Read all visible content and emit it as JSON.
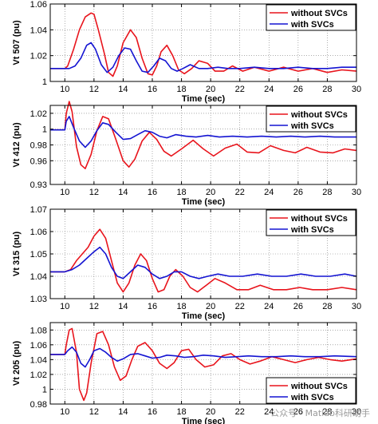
{
  "colors": {
    "without": "#e8141c",
    "with": "#1414d2",
    "axis": "#000000",
    "grid": "#7a7a7a"
  },
  "watermark": "公众号 · Matlab科研助手",
  "chart_data": [
    {
      "type": "line",
      "xlabel": "Time (sec)",
      "ylabel": "Vt 507 (pu)",
      "xlim": [
        9,
        30
      ],
      "ylim": [
        1.0,
        1.06
      ],
      "xticks": [
        10,
        12,
        14,
        16,
        18,
        20,
        22,
        24,
        26,
        28,
        30
      ],
      "yticks": [
        1.0,
        1.02,
        1.04,
        1.06
      ],
      "ytick_labels": [
        "1",
        "1.02",
        "1.04",
        "1.06"
      ],
      "grid": true,
      "legend": "top-right",
      "series": [
        {
          "name": "without SVCs",
          "color": "red",
          "x": [
            9,
            10,
            10.2,
            10.6,
            11.0,
            11.4,
            11.8,
            12.0,
            12.3,
            12.7,
            13.0,
            13.3,
            13.6,
            14.0,
            14.5,
            14.9,
            15.3,
            15.7,
            16.0,
            16.3,
            16.6,
            17.0,
            17.4,
            17.8,
            18.2,
            18.7,
            19.2,
            19.8,
            20.3,
            20.9,
            21.5,
            22.2,
            23.0,
            24.0,
            25.0,
            26.0,
            27.0,
            28.0,
            29.0,
            30
          ],
          "y": [
            1.01,
            1.01,
            1.012,
            1.025,
            1.04,
            1.05,
            1.053,
            1.052,
            1.04,
            1.022,
            1.007,
            1.004,
            1.012,
            1.03,
            1.04,
            1.034,
            1.018,
            1.006,
            1.005,
            1.012,
            1.023,
            1.028,
            1.02,
            1.009,
            1.006,
            1.01,
            1.016,
            1.014,
            1.008,
            1.008,
            1.012,
            1.008,
            1.011,
            1.008,
            1.011,
            1.008,
            1.01,
            1.007,
            1.009,
            1.008
          ]
        },
        {
          "name": "with SVCs",
          "color": "blue",
          "x": [
            9,
            10,
            10.3,
            10.7,
            11.1,
            11.5,
            11.8,
            12.1,
            12.5,
            12.9,
            13.3,
            13.7,
            14.1,
            14.5,
            14.9,
            15.3,
            15.7,
            16.1,
            16.5,
            16.9,
            17.3,
            17.7,
            18.1,
            18.6,
            19.2,
            19.8,
            20.5,
            21.2,
            22.0,
            23.0,
            24.0,
            25.0,
            26.0,
            27.0,
            28.0,
            29.0,
            30
          ],
          "y": [
            1.01,
            1.01,
            1.01,
            1.012,
            1.018,
            1.028,
            1.03,
            1.025,
            1.013,
            1.007,
            1.011,
            1.02,
            1.026,
            1.025,
            1.016,
            1.008,
            1.007,
            1.012,
            1.018,
            1.016,
            1.01,
            1.008,
            1.01,
            1.013,
            1.01,
            1.01,
            1.011,
            1.01,
            1.01,
            1.011,
            1.01,
            1.01,
            1.011,
            1.01,
            1.01,
            1.011,
            1.011
          ]
        }
      ]
    },
    {
      "type": "line",
      "xlabel": "Time (sec)",
      "ylabel": "Vt 412 (pu)",
      "xlim": [
        9,
        30
      ],
      "ylim": [
        0.93,
        1.03
      ],
      "xticks": [
        10,
        12,
        14,
        16,
        18,
        20,
        22,
        24,
        26,
        28,
        30
      ],
      "yticks": [
        0.93,
        0.96,
        0.98,
        1.0,
        1.02
      ],
      "ytick_labels": [
        "0.93",
        "0.96",
        "0.98",
        "1",
        "1.02"
      ],
      "grid": true,
      "legend": "top-right",
      "series": [
        {
          "name": "without SVCs",
          "color": "red",
          "x": [
            9,
            10,
            10.1,
            10.3,
            10.5,
            10.8,
            11.1,
            11.4,
            11.8,
            12.2,
            12.6,
            13.0,
            13.5,
            14.0,
            14.4,
            14.8,
            15.3,
            15.8,
            16.3,
            16.8,
            17.3,
            18.0,
            18.8,
            19.5,
            20.2,
            21.0,
            21.8,
            22.5,
            23.3,
            24.1,
            25.0,
            25.8,
            26.6,
            27.5,
            28.4,
            29.2,
            30
          ],
          "y": [
            0.999,
            0.999,
            1.02,
            1.035,
            1.022,
            0.978,
            0.955,
            0.95,
            0.968,
            0.998,
            1.016,
            1.013,
            0.987,
            0.96,
            0.952,
            0.962,
            0.985,
            0.996,
            0.987,
            0.972,
            0.966,
            0.975,
            0.986,
            0.975,
            0.966,
            0.976,
            0.981,
            0.971,
            0.97,
            0.979,
            0.973,
            0.97,
            0.977,
            0.971,
            0.97,
            0.975,
            0.973
          ]
        },
        {
          "name": "with SVCs",
          "color": "blue",
          "x": [
            9,
            10,
            10.1,
            10.3,
            10.6,
            11.0,
            11.4,
            11.8,
            12.2,
            12.6,
            13.0,
            13.5,
            14.0,
            14.5,
            15.0,
            15.5,
            16.0,
            16.5,
            17.0,
            17.6,
            18.3,
            19.0,
            19.8,
            20.6,
            21.5,
            22.5,
            23.5,
            24.5,
            25.5,
            26.5,
            27.5,
            28.5,
            30
          ],
          "y": [
            0.999,
            0.999,
            1.01,
            1.016,
            1.002,
            0.985,
            0.977,
            0.985,
            0.998,
            1.008,
            1.006,
            0.996,
            0.987,
            0.988,
            0.993,
            0.998,
            0.996,
            0.991,
            0.989,
            0.993,
            0.991,
            0.99,
            0.992,
            0.99,
            0.991,
            0.99,
            0.991,
            0.99,
            0.991,
            0.99,
            0.991,
            0.99,
            0.99
          ]
        }
      ]
    },
    {
      "type": "line",
      "xlabel": "Time (sec)",
      "ylabel": "Vt 315 (pu)",
      "xlim": [
        9,
        30
      ],
      "ylim": [
        1.03,
        1.07
      ],
      "xticks": [
        10,
        12,
        14,
        16,
        18,
        20,
        22,
        24,
        26,
        28,
        30
      ],
      "yticks": [
        1.03,
        1.04,
        1.05,
        1.06,
        1.07
      ],
      "ytick_labels": [
        "1.03",
        "1.04",
        "1.05",
        "1.06",
        "1.07"
      ],
      "grid": true,
      "legend": "top-right",
      "series": [
        {
          "name": "without SVCs",
          "color": "red",
          "x": [
            9,
            10,
            10.4,
            10.8,
            11.2,
            11.6,
            12.0,
            12.4,
            12.8,
            13.2,
            13.6,
            14.0,
            14.4,
            14.8,
            15.2,
            15.6,
            16.0,
            16.4,
            16.8,
            17.2,
            17.6,
            18.1,
            18.6,
            19.1,
            19.7,
            20.3,
            21.0,
            21.8,
            22.6,
            23.4,
            24.3,
            25.2,
            26.1,
            27.0,
            28.0,
            29.0,
            30
          ],
          "y": [
            1.042,
            1.042,
            1.043,
            1.047,
            1.05,
            1.053,
            1.058,
            1.061,
            1.057,
            1.047,
            1.037,
            1.033,
            1.037,
            1.045,
            1.05,
            1.047,
            1.039,
            1.033,
            1.034,
            1.04,
            1.043,
            1.04,
            1.035,
            1.033,
            1.036,
            1.039,
            1.037,
            1.034,
            1.034,
            1.036,
            1.034,
            1.034,
            1.035,
            1.034,
            1.034,
            1.035,
            1.034
          ]
        },
        {
          "name": "with SVCs",
          "color": "blue",
          "x": [
            9,
            10,
            10.5,
            11.0,
            11.5,
            12.0,
            12.4,
            12.8,
            13.2,
            13.6,
            14.0,
            14.5,
            15.0,
            15.5,
            16.0,
            16.5,
            17.0,
            17.5,
            18.0,
            18.6,
            19.2,
            19.8,
            20.5,
            21.3,
            22.2,
            23.2,
            24.2,
            25.2,
            26.2,
            27.2,
            28.2,
            29.2,
            30
          ],
          "y": [
            1.042,
            1.042,
            1.043,
            1.045,
            1.048,
            1.051,
            1.053,
            1.05,
            1.044,
            1.04,
            1.039,
            1.042,
            1.045,
            1.044,
            1.041,
            1.039,
            1.04,
            1.042,
            1.042,
            1.04,
            1.039,
            1.04,
            1.041,
            1.04,
            1.04,
            1.041,
            1.04,
            1.04,
            1.041,
            1.04,
            1.04,
            1.041,
            1.04
          ]
        }
      ]
    },
    {
      "type": "line",
      "xlabel": "Time (sec)",
      "ylabel": "Vt 205 (pu)",
      "xlim": [
        9,
        30
      ],
      "ylim": [
        0.98,
        1.09
      ],
      "xticks": [
        10,
        12,
        14,
        16,
        18,
        20,
        22,
        24,
        26,
        28,
        30
      ],
      "yticks": [
        0.98,
        1.0,
        1.02,
        1.04,
        1.06,
        1.08
      ],
      "ytick_labels": [
        "0.98",
        "1",
        "1.02",
        "1.04",
        "1.06",
        "1.08"
      ],
      "grid": true,
      "legend": "bottom-right",
      "series": [
        {
          "name": "without SVCs",
          "color": "red",
          "x": [
            9,
            10,
            10.1,
            10.3,
            10.5,
            10.8,
            11.0,
            11.3,
            11.5,
            11.8,
            12.2,
            12.6,
            13.0,
            13.4,
            13.8,
            14.2,
            14.6,
            15.0,
            15.5,
            16.0,
            16.5,
            17.0,
            17.5,
            18.0,
            18.5,
            19.0,
            19.6,
            20.2,
            20.8,
            21.4,
            22.0,
            22.7,
            23.4,
            24.2,
            25.0,
            25.8,
            26.6,
            27.4,
            28.2,
            29.0,
            30
          ],
          "y": [
            1.047,
            1.047,
            1.06,
            1.08,
            1.082,
            1.05,
            1.0,
            0.985,
            0.995,
            1.035,
            1.075,
            1.078,
            1.06,
            1.03,
            1.012,
            1.018,
            1.04,
            1.058,
            1.063,
            1.052,
            1.035,
            1.028,
            1.036,
            1.052,
            1.054,
            1.04,
            1.03,
            1.033,
            1.045,
            1.048,
            1.04,
            1.034,
            1.038,
            1.044,
            1.04,
            1.036,
            1.04,
            1.043,
            1.04,
            1.038,
            1.041
          ]
        },
        {
          "name": "with SVCs",
          "color": "blue",
          "x": [
            9,
            10,
            10.2,
            10.5,
            10.8,
            11.1,
            11.4,
            11.7,
            12.0,
            12.4,
            12.8,
            13.2,
            13.6,
            14.0,
            14.5,
            15.0,
            15.5,
            16.0,
            16.5,
            17.0,
            17.6,
            18.2,
            18.8,
            19.5,
            20.2,
            21.0,
            21.8,
            22.6,
            23.5,
            24.5,
            25.5,
            26.5,
            27.5,
            28.5,
            30
          ],
          "y": [
            1.047,
            1.047,
            1.052,
            1.057,
            1.05,
            1.035,
            1.03,
            1.04,
            1.052,
            1.055,
            1.05,
            1.043,
            1.038,
            1.041,
            1.047,
            1.048,
            1.045,
            1.042,
            1.043,
            1.046,
            1.045,
            1.043,
            1.044,
            1.046,
            1.045,
            1.043,
            1.044,
            1.045,
            1.044,
            1.044,
            1.045,
            1.044,
            1.044,
            1.045,
            1.044
          ]
        }
      ]
    }
  ]
}
